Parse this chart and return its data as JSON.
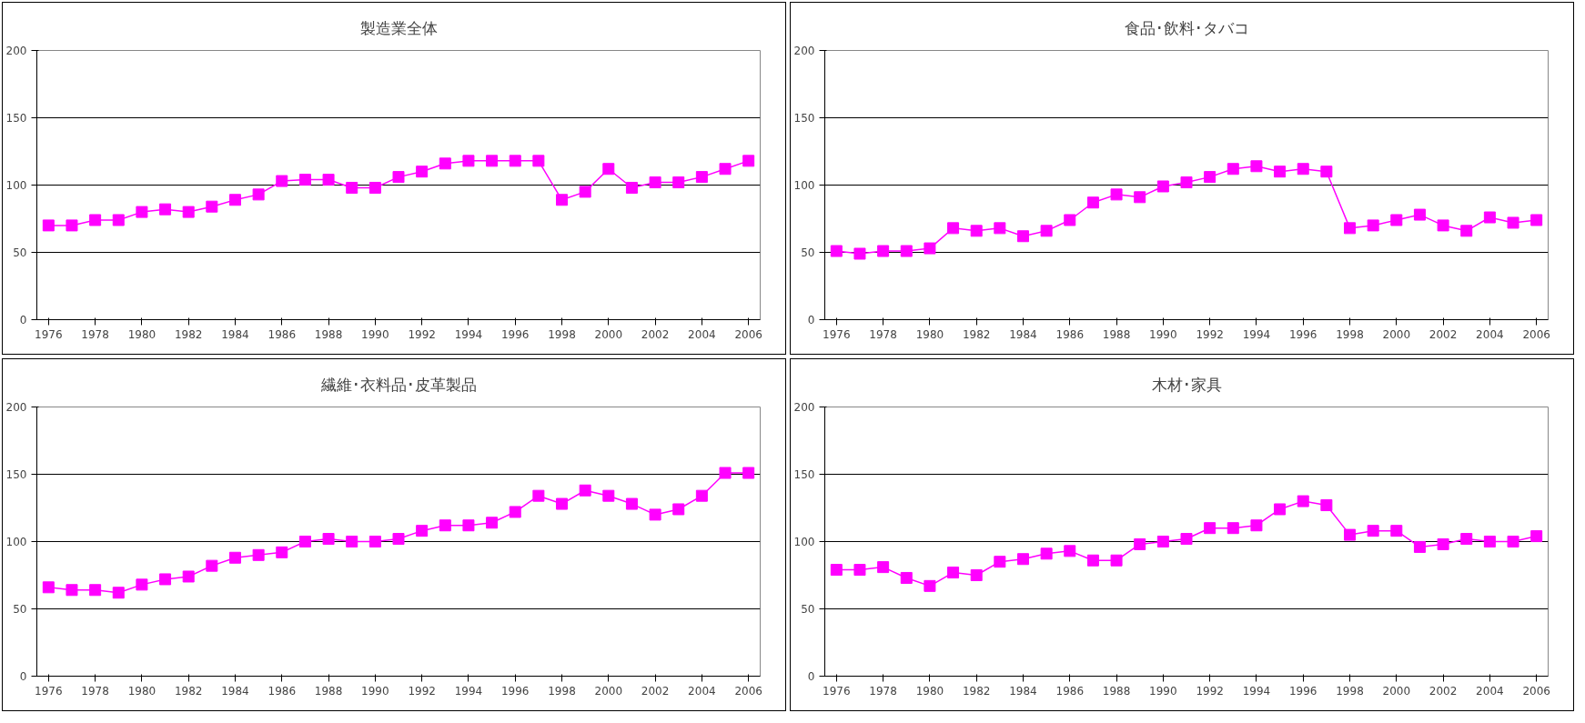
{
  "chart_data": [
    {
      "type": "line",
      "title": "製造業全体",
      "x": [
        1976,
        1977,
        1978,
        1979,
        1980,
        1981,
        1982,
        1983,
        1984,
        1985,
        1986,
        1987,
        1988,
        1989,
        1990,
        1991,
        1992,
        1993,
        1994,
        1995,
        1996,
        1997,
        1998,
        1999,
        2000,
        2001,
        2002,
        2003,
        2004,
        2005,
        2006
      ],
      "series": [
        {
          "color": "#ff00ff",
          "values": [
            70,
            70,
            74,
            74,
            80,
            82,
            80,
            84,
            89,
            93,
            103,
            104,
            104,
            98,
            98,
            106,
            110,
            116,
            118,
            118,
            118,
            118,
            89,
            95,
            112,
            98,
            102,
            102,
            106,
            112,
            118
          ]
        }
      ],
      "xlim": [
        1975.5,
        2006.5
      ],
      "xticks": [
        1976,
        1978,
        1980,
        1982,
        1984,
        1986,
        1988,
        1990,
        1992,
        1994,
        1996,
        1998,
        2000,
        2002,
        2004,
        2006
      ],
      "ylim": [
        0,
        200
      ],
      "yticks": [
        0,
        50,
        100,
        150,
        200
      ],
      "grid": "y",
      "marker": "square",
      "line_style": "solid"
    },
    {
      "type": "line",
      "title": "食品･飲料･タバコ",
      "x": [
        1976,
        1977,
        1978,
        1979,
        1980,
        1981,
        1982,
        1983,
        1984,
        1985,
        1986,
        1987,
        1988,
        1989,
        1990,
        1991,
        1992,
        1993,
        1994,
        1995,
        1996,
        1997,
        1998,
        1999,
        2000,
        2001,
        2002,
        2003,
        2004,
        2005,
        2006
      ],
      "series": [
        {
          "color": "#ff00ff",
          "values": [
            51,
            49,
            51,
            51,
            53,
            68,
            66,
            68,
            62,
            66,
            74,
            87,
            93,
            91,
            99,
            102,
            106,
            112,
            114,
            110,
            112,
            110,
            68,
            70,
            74,
            78,
            70,
            66,
            76,
            72,
            74
          ]
        }
      ],
      "xlim": [
        1975.5,
        2006.5
      ],
      "xticks": [
        1976,
        1978,
        1980,
        1982,
        1984,
        1986,
        1988,
        1990,
        1992,
        1994,
        1996,
        1998,
        2000,
        2002,
        2004,
        2006
      ],
      "ylim": [
        0,
        200
      ],
      "yticks": [
        0,
        50,
        100,
        150,
        200
      ],
      "grid": "y",
      "marker": "square",
      "line_style": "solid"
    },
    {
      "type": "line",
      "title": "繊維･衣料品･皮革製品",
      "x": [
        1976,
        1977,
        1978,
        1979,
        1980,
        1981,
        1982,
        1983,
        1984,
        1985,
        1986,
        1987,
        1988,
        1989,
        1990,
        1991,
        1992,
        1993,
        1994,
        1995,
        1996,
        1997,
        1998,
        1999,
        2000,
        2001,
        2002,
        2003,
        2004,
        2005,
        2006
      ],
      "series": [
        {
          "color": "#ff00ff",
          "values": [
            66,
            64,
            64,
            62,
            68,
            72,
            74,
            82,
            88,
            90,
            92,
            100,
            102,
            100,
            100,
            102,
            108,
            112,
            112,
            114,
            122,
            134,
            128,
            138,
            134,
            128,
            120,
            124,
            134,
            151,
            151
          ]
        }
      ],
      "xlim": [
        1975.5,
        2006.5
      ],
      "xticks": [
        1976,
        1978,
        1980,
        1982,
        1984,
        1986,
        1988,
        1990,
        1992,
        1994,
        1996,
        1998,
        2000,
        2002,
        2004,
        2006
      ],
      "ylim": [
        0,
        200
      ],
      "yticks": [
        0,
        50,
        100,
        150,
        200
      ],
      "grid": "y",
      "marker": "square",
      "line_style": "solid"
    },
    {
      "type": "line",
      "title": "木材･家具",
      "x": [
        1976,
        1977,
        1978,
        1979,
        1980,
        1981,
        1982,
        1983,
        1984,
        1985,
        1986,
        1987,
        1988,
        1989,
        1990,
        1991,
        1992,
        1993,
        1994,
        1995,
        1996,
        1997,
        1998,
        1999,
        2000,
        2001,
        2002,
        2003,
        2004,
        2005,
        2006
      ],
      "series": [
        {
          "color": "#ff00ff",
          "values": [
            79,
            79,
            81,
            73,
            67,
            77,
            75,
            85,
            87,
            91,
            93,
            86,
            86,
            98,
            100,
            102,
            110,
            110,
            112,
            124,
            130,
            127,
            105,
            108,
            108,
            96,
            98,
            102,
            100,
            100,
            104
          ]
        }
      ],
      "xlim": [
        1975.5,
        2006.5
      ],
      "xticks": [
        1976,
        1978,
        1980,
        1982,
        1984,
        1986,
        1988,
        1990,
        1992,
        1994,
        1996,
        1998,
        2000,
        2002,
        2004,
        2006
      ],
      "ylim": [
        0,
        200
      ],
      "yticks": [
        0,
        50,
        100,
        150,
        200
      ],
      "grid": "y",
      "marker": "square",
      "line_style": "solid"
    }
  ]
}
